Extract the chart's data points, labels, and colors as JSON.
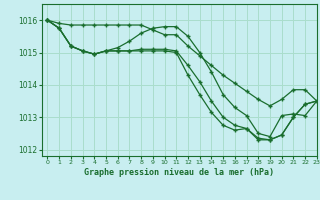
{
  "title": "Graphe pression niveau de la mer (hPa)",
  "bg_color": "#c8eef0",
  "grid_color": "#aaddcc",
  "line_color": "#1a6e2e",
  "marker_color": "#1a6e2e",
  "xlim": [
    -0.5,
    23
  ],
  "ylim": [
    1011.8,
    1016.5
  ],
  "yticks": [
    1012,
    1013,
    1014,
    1015,
    1016
  ],
  "xticks": [
    0,
    1,
    2,
    3,
    4,
    5,
    6,
    7,
    8,
    9,
    10,
    11,
    12,
    13,
    14,
    15,
    16,
    17,
    18,
    19,
    20,
    21,
    22,
    23
  ],
  "series": [
    [
      1016.0,
      1015.9,
      1015.85,
      1015.85,
      1015.85,
      1015.85,
      1015.85,
      1015.85,
      1015.85,
      1015.7,
      1015.55,
      1015.55,
      1015.2,
      1014.9,
      1014.6,
      1014.3,
      1014.05,
      1013.8,
      1013.55,
      1013.35,
      1013.55,
      1013.85,
      1013.85,
      1013.5
    ],
    [
      1016.0,
      1015.75,
      1015.2,
      1015.05,
      1014.95,
      1015.05,
      1015.15,
      1015.35,
      1015.6,
      1015.75,
      1015.8,
      1015.8,
      1015.5,
      1015.0,
      1014.4,
      1013.7,
      1013.3,
      1013.05,
      1012.5,
      1012.4,
      1013.05,
      1013.1,
      1013.05,
      1013.5
    ],
    [
      1016.0,
      1015.75,
      1015.2,
      1015.05,
      1014.95,
      1015.05,
      1015.05,
      1015.05,
      1015.1,
      1015.1,
      1015.1,
      1015.05,
      1014.6,
      1014.1,
      1013.5,
      1013.0,
      1012.75,
      1012.65,
      1012.35,
      1012.3,
      1012.45,
      1013.0,
      1013.4,
      1013.5
    ],
    [
      1016.0,
      1015.75,
      1015.2,
      1015.05,
      1014.95,
      1015.05,
      1015.05,
      1015.05,
      1015.05,
      1015.05,
      1015.05,
      1015.0,
      1014.3,
      1013.7,
      1013.15,
      1012.75,
      1012.6,
      1012.65,
      1012.3,
      1012.3,
      1012.45,
      1013.0,
      1013.4,
      1013.5
    ]
  ]
}
